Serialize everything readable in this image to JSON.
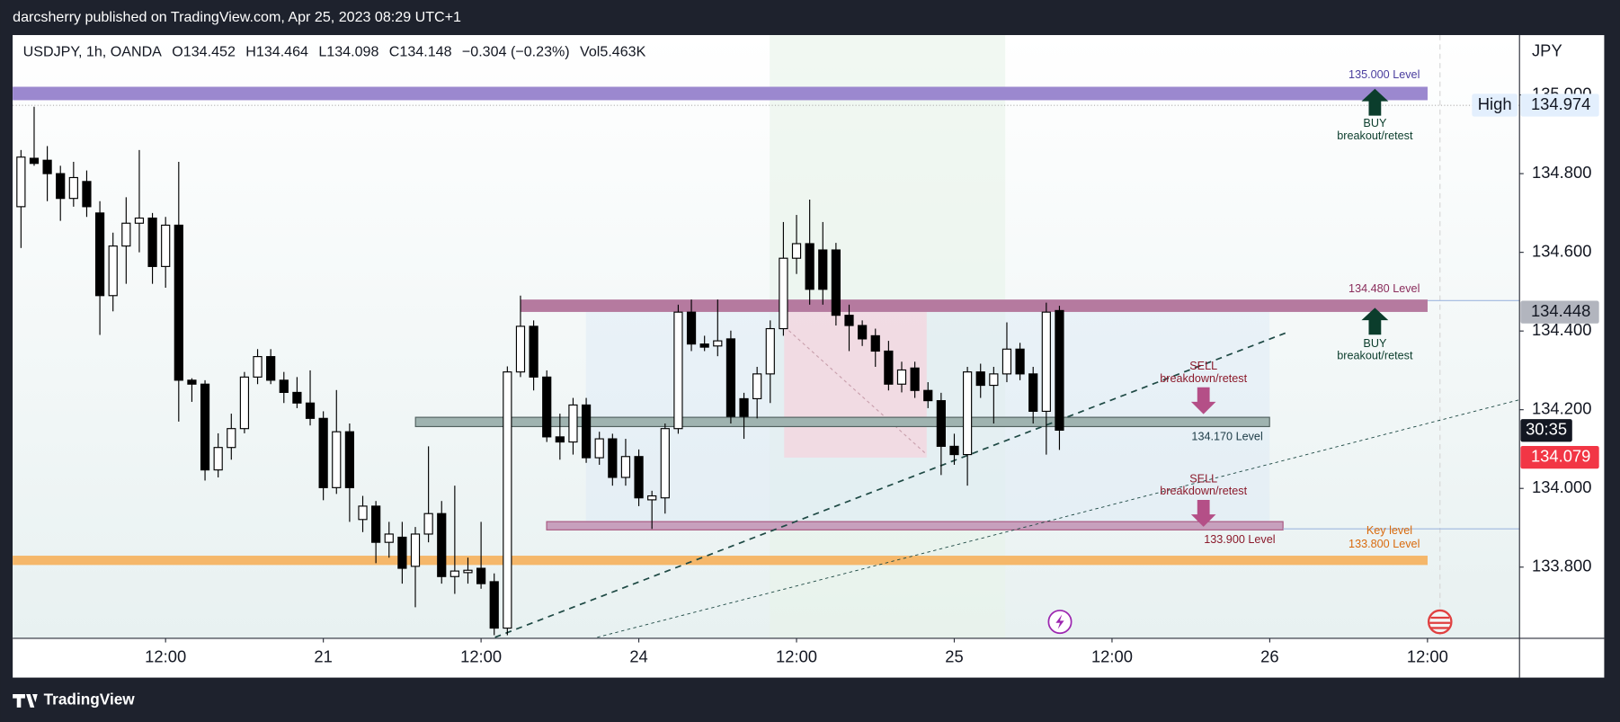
{
  "header": {
    "published": "darcsherry published on TradingView.com, Apr 25, 2023 08:29 UTC+1",
    "symbol": "USDJPY, 1h, OANDA",
    "ohlc": [
      "O134.452",
      "H134.464",
      "L134.098",
      "C134.148"
    ],
    "change": "−0.304 (−0.23%)",
    "volume": "Vol5.463K",
    "brand": "TradingView"
  },
  "chart_data": {
    "type": "candlestick",
    "y_unit": "JPY",
    "up_color": "#ffffff",
    "down_color": "#000000",
    "wick_color": "#000000",
    "open": [
      134.716,
      134.839,
      134.834,
      134.8,
      134.737,
      134.78,
      134.7,
      134.49,
      134.616,
      134.674,
      134.687,
      134.564,
      134.669,
      134.275,
      134.265,
      134.047,
      134.104,
      134.152,
      134.283,
      134.335,
      134.275,
      134.244,
      134.217,
      134.178,
      134.002,
      134.144,
      133.921,
      133.955,
      133.863,
      133.876,
      133.802,
      133.884,
      133.936,
      133.776,
      133.786,
      133.797,
      133.763,
      133.645,
      134.296,
      134.412,
      134.283,
      134.131,
      134.118,
      134.212,
      134.078,
      134.126,
      134.028,
      134.081,
      133.971,
      133.976,
      134.152,
      134.448,
      134.367,
      134.362,
      134.38,
      134.228,
      134.228,
      134.291,
      134.406,
      134.585,
      134.622,
      134.606,
      134.606,
      134.44,
      134.414,
      134.388,
      134.349,
      134.265,
      134.306,
      134.249,
      134.223,
      134.107,
      134.086,
      134.296,
      134.262,
      134.291,
      134.354,
      134.291,
      134.196,
      134.452
    ],
    "high": [
      134.86,
      134.97,
      134.87,
      134.82,
      134.83,
      134.808,
      134.73,
      134.65,
      134.74,
      134.86,
      134.7,
      134.69,
      134.83,
      134.28,
      134.275,
      134.14,
      134.19,
      134.296,
      134.354,
      134.354,
      134.296,
      134.283,
      134.3,
      134.196,
      134.25,
      134.165,
      133.981,
      133.968,
      133.915,
      133.915,
      133.902,
      134.107,
      133.968,
      134.007,
      133.824,
      133.915,
      133.784,
      134.31,
      134.49,
      134.427,
      134.3,
      134.19,
      134.23,
      134.23,
      134.144,
      134.139,
      134.126,
      134.099,
      133.994,
      134.165,
      134.467,
      134.48,
      134.388,
      134.48,
      134.401,
      134.243,
      134.309,
      134.427,
      134.677,
      134.695,
      134.734,
      134.677,
      134.624,
      134.467,
      134.427,
      134.406,
      134.375,
      134.322,
      134.322,
      134.27,
      134.243,
      134.139,
      134.309,
      134.317,
      134.309,
      134.422,
      134.37,
      134.309,
      134.472,
      134.464
    ],
    "low": [
      134.611,
      134.82,
      134.73,
      134.68,
      134.716,
      134.69,
      134.39,
      134.45,
      134.52,
      134.6,
      134.52,
      134.51,
      134.17,
      134.22,
      134.02,
      134.028,
      134.073,
      134.14,
      134.265,
      134.265,
      134.217,
      134.204,
      134.16,
      133.97,
      133.986,
      133.915,
      133.889,
      133.81,
      133.824,
      133.758,
      133.698,
      133.863,
      133.758,
      133.732,
      133.758,
      133.745,
      133.627,
      133.627,
      134.283,
      134.249,
      134.118,
      134.073,
      134.086,
      134.065,
      134.06,
      134.007,
      134.007,
      133.955,
      133.897,
      133.936,
      134.139,
      134.349,
      134.349,
      134.336,
      134.165,
      134.126,
      134.178,
      134.217,
      134.388,
      134.545,
      134.467,
      134.467,
      134.414,
      134.349,
      134.362,
      134.309,
      134.249,
      134.244,
      134.23,
      134.204,
      134.034,
      134.06,
      134.007,
      134.23,
      134.165,
      134.27,
      134.275,
      134.165,
      134.086,
      134.098
    ],
    "close": [
      134.842,
      134.826,
      134.8,
      134.737,
      134.79,
      134.716,
      134.49,
      134.616,
      134.674,
      134.687,
      134.564,
      134.669,
      134.275,
      134.265,
      134.047,
      134.104,
      134.152,
      134.283,
      134.335,
      134.275,
      134.244,
      134.217,
      134.178,
      134.002,
      134.144,
      134.002,
      133.955,
      133.863,
      133.884,
      133.797,
      133.884,
      133.936,
      133.776,
      133.79,
      133.792,
      133.758,
      133.645,
      134.296,
      134.412,
      134.283,
      134.131,
      134.118,
      134.212,
      134.078,
      134.126,
      134.028,
      134.081,
      133.976,
      133.981,
      134.152,
      134.448,
      134.367,
      134.359,
      134.375,
      134.183,
      134.183,
      134.291,
      134.406,
      134.585,
      134.622,
      134.506,
      134.506,
      134.44,
      134.414,
      134.38,
      134.349,
      134.265,
      134.301,
      134.249,
      134.223,
      134.107,
      134.086,
      134.296,
      134.262,
      134.291,
      134.354,
      134.291,
      134.196,
      134.448,
      134.148
    ],
    "xlim": [
      -0.63,
      114
    ],
    "ylim": [
      133.619,
      135.152
    ],
    "xticks": [
      {
        "value": 11,
        "label": "12:00"
      },
      {
        "value": 23,
        "label": "21"
      },
      {
        "value": 35,
        "label": "12:00"
      },
      {
        "value": 47,
        "label": "24"
      },
      {
        "value": 59,
        "label": "12:00"
      },
      {
        "value": 71,
        "label": "25"
      },
      {
        "value": 83,
        "label": "12:00"
      },
      {
        "value": 95,
        "label": "26"
      },
      {
        "value": 107,
        "label": "12:00"
      }
    ],
    "yticks": [
      {
        "value": 133.8,
        "label": "133.800"
      },
      {
        "value": 134,
        "label": "134.000"
      },
      {
        "value": 134.2,
        "label": "134.200"
      },
      {
        "value": 134.4,
        "label": "134.400"
      },
      {
        "value": 134.6,
        "label": "134.600"
      },
      {
        "value": 134.8,
        "label": "134.800"
      },
      {
        "value": 135,
        "label": "135.000"
      }
    ],
    "price_tags": [
      {
        "label": "High",
        "value": 134.974,
        "color": "#e3effd",
        "text_color": "#131722"
      },
      {
        "value": 134.448,
        "color": "#b2b5be",
        "text_color": "#131722"
      },
      {
        "value": 134.079,
        "color": "#f23645",
        "text_color": "#ffffff",
        "countdown": "30:35"
      }
    ],
    "annotations": [
      "135.000 Level",
      "BUY",
      "breakout/retest",
      "134.480 Level",
      "BUY",
      "breakout/retest",
      "SELL",
      "breakdown/retest",
      "134.170 Level",
      "SELL",
      "breakdown/retest",
      "133.900 Level",
      "Key level",
      "133.800 Level"
    ]
  }
}
